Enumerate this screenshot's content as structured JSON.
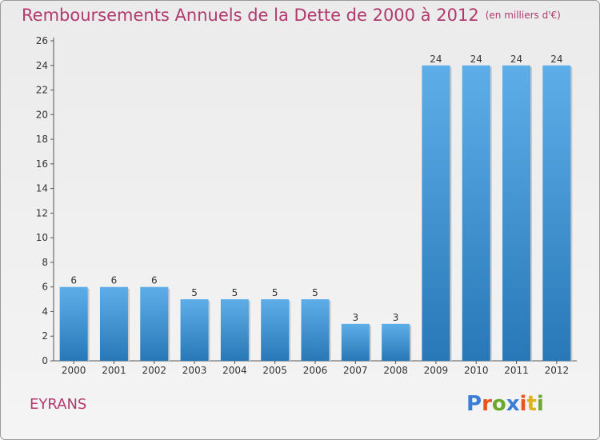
{
  "title": "Remboursements Annuels de la Dette de 2000 à 2012",
  "unit": "(en milliers d'€)",
  "commune": "EYRANS",
  "brand": {
    "text": "Proxiti",
    "colors": [
      "#3a7fd5",
      "#e8541e",
      "#6aa82c",
      "#3a7fd5",
      "#e8541e",
      "#e0b21a",
      "#6aa82c"
    ]
  },
  "colors": {
    "bar_top": "#5daee8",
    "bar_bottom": "#2878b8",
    "title": "#b03a6e"
  },
  "chart_data": {
    "type": "bar",
    "categories": [
      "2000",
      "2001",
      "2002",
      "2003",
      "2004",
      "2005",
      "2006",
      "2007",
      "2008",
      "2009",
      "2010",
      "2011",
      "2012"
    ],
    "values": [
      6,
      6,
      6,
      5,
      5,
      5,
      5,
      3,
      3,
      24,
      24,
      24,
      24
    ],
    "ylim": [
      0,
      26
    ],
    "yticks": [
      0,
      2,
      4,
      6,
      8,
      10,
      12,
      14,
      16,
      18,
      20,
      22,
      24,
      26
    ],
    "grid": false
  }
}
